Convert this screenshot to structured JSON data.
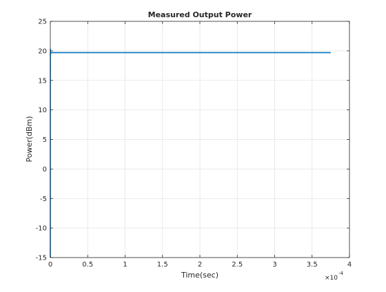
{
  "chart_data": {
    "type": "line",
    "title": "Measured Output Power",
    "xlabel": "Time(sec)",
    "ylabel": "Power(dBm)",
    "x_exponent_label": "×10",
    "x_exponent_power": "-4",
    "xlim": [
      0,
      4
    ],
    "ylim": [
      -15,
      25
    ],
    "xticks": [
      0,
      0.5,
      1,
      1.5,
      2,
      2.5,
      3,
      3.5,
      4
    ],
    "xtick_labels": [
      "0",
      "0.5",
      "1",
      "1.5",
      "2",
      "2.5",
      "3",
      "3.5",
      "4"
    ],
    "yticks": [
      -15,
      -10,
      -5,
      0,
      5,
      10,
      15,
      20,
      25
    ],
    "ytick_labels": [
      "-15",
      "-10",
      "-5",
      "0",
      "5",
      "10",
      "15",
      "20",
      "25"
    ],
    "grid": true,
    "color": "#0072bd",
    "series": [
      {
        "x": [
          0,
          0.0005,
          0.001,
          0.0015,
          0.002,
          0.003,
          0.005,
          0.008,
          0.012,
          0.02,
          0.03,
          0.05,
          0.1,
          0.2,
          0.5,
          1.0,
          1.5,
          2.0,
          2.5,
          3.0,
          3.5,
          3.75
        ],
        "y": [
          -15,
          14,
          20.3,
          19.2,
          20.1,
          19.5,
          19.8,
          19.6,
          19.7,
          19.7,
          19.7,
          19.7,
          19.7,
          19.7,
          19.7,
          19.7,
          19.7,
          19.7,
          19.7,
          19.7,
          19.7,
          19.7
        ]
      }
    ]
  }
}
